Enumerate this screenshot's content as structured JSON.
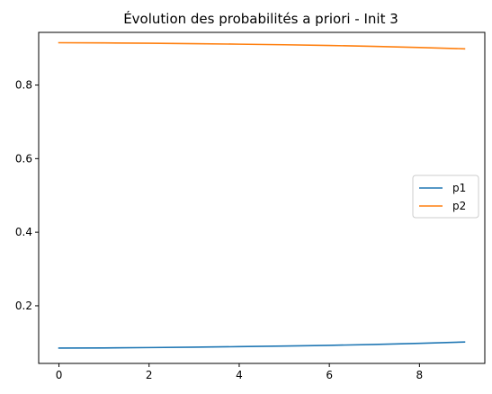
{
  "chart_data": {
    "type": "line",
    "title": "Évolution des probabilités a priori - Init 3",
    "xlabel": "",
    "ylabel": "",
    "x": [
      0,
      1,
      2,
      3,
      4,
      5,
      6,
      7,
      8,
      9
    ],
    "series": [
      {
        "name": "p1",
        "color": "#1f77b4",
        "values": [
          0.085,
          0.0855,
          0.0865,
          0.0875,
          0.089,
          0.0905,
          0.0925,
          0.095,
          0.098,
          0.1015
        ]
      },
      {
        "name": "p2",
        "color": "#ff7f0e",
        "values": [
          0.915,
          0.9145,
          0.9135,
          0.9125,
          0.911,
          0.9095,
          0.9075,
          0.905,
          0.902,
          0.8985
        ]
      }
    ],
    "xlim": [
      -0.45,
      9.45
    ],
    "ylim": [
      0.0434,
      0.9431
    ],
    "xticks": [
      0,
      2,
      4,
      6,
      8
    ],
    "xtick_labels": [
      "0",
      "2",
      "4",
      "6",
      "8"
    ],
    "yticks": [
      0.2,
      0.4,
      0.6,
      0.8
    ],
    "ytick_labels": [
      "0.2",
      "0.4",
      "0.6",
      "0.8"
    ],
    "grid": false,
    "legend_position": "center-right"
  }
}
